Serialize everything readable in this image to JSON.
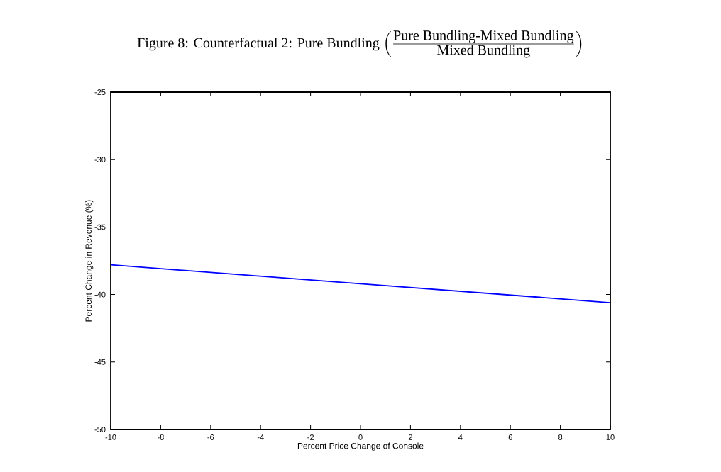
{
  "chart_data": {
    "type": "line",
    "title": "Figure 8: Counterfactual 2: Pure Bundling",
    "subtitle": "\\left(\\frac{\\mbox{Pure Bundling-Mixed Bundling}}{\\mbox{Mixed Bundling}}\\right)",
    "xlabel": "Percent Price Change of Console",
    "ylabel": "Percent Change in Revenue (%)",
    "x": [
      -10,
      0,
      10
    ],
    "series": [
      {
        "color": "#0000ff",
        "values": [
          -37.8,
          -39.2,
          -40.6
        ]
      }
    ],
    "xlim": [
      -10,
      10
    ],
    "ylim": [
      -50,
      -25
    ],
    "xticks": [
      -10,
      -8,
      -6,
      -4,
      -2,
      0,
      2,
      4,
      6,
      8,
      10
    ],
    "yticks": [
      -50,
      -45,
      -40,
      -35,
      -30,
      -25
    ],
    "grid": false,
    "marker": "none",
    "line_style": "solid"
  }
}
